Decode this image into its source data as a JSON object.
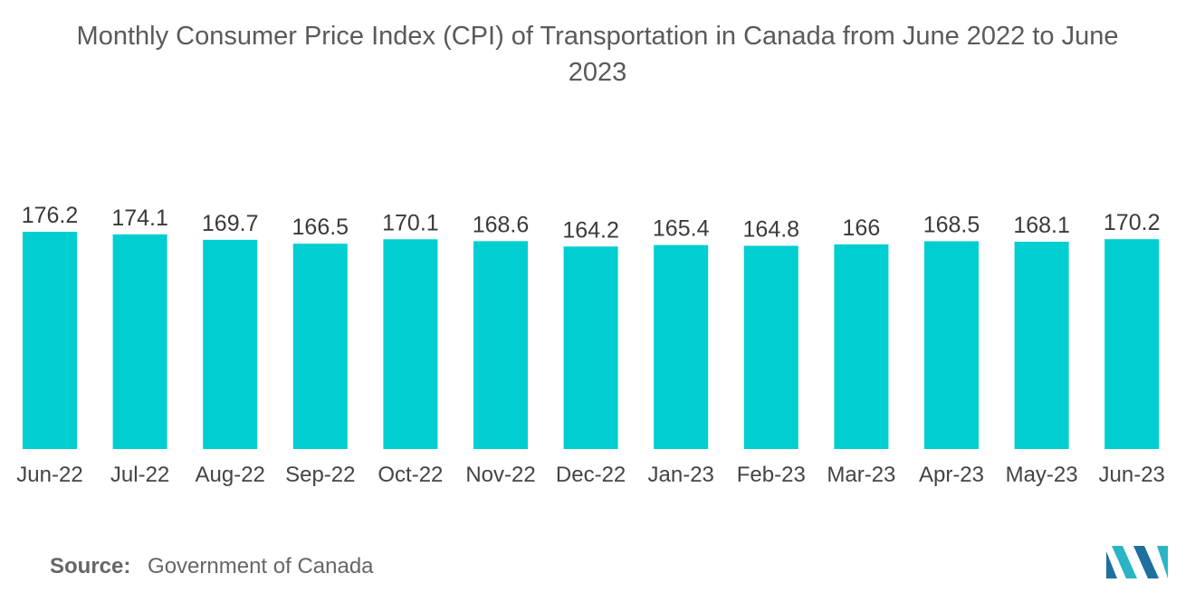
{
  "chart_data": {
    "type": "bar",
    "title_lines": [
      "Monthly Consumer Price Index (CPI) of Transportation in Canada from June 2022 to June",
      "2023"
    ],
    "categories": [
      "Jun-22",
      "Jul-22",
      "Aug-22",
      "Sep-22",
      "Oct-22",
      "Nov-22",
      "Dec-22",
      "Jan-23",
      "Feb-23",
      "Mar-23",
      "Apr-23",
      "May-23",
      "Jun-23"
    ],
    "values": [
      176.2,
      174.1,
      169.7,
      166.5,
      170.1,
      168.6,
      164.2,
      165.4,
      164.8,
      166,
      168.5,
      168.1,
      170.2
    ],
    "value_labels": [
      "176.2",
      "174.1",
      "169.7",
      "166.5",
      "170.1",
      "168.6",
      "164.2",
      "165.4",
      "164.8",
      "166",
      "168.5",
      "168.1",
      "170.2"
    ],
    "xlabel": "",
    "ylabel": "",
    "ylim": [
      0,
      176.2
    ],
    "grid": false,
    "legend": "none",
    "bar_color": "#00ced1"
  },
  "source": {
    "label": "Source:",
    "value": "Government of Canada"
  },
  "colors": {
    "logo_dark": "#1f6f9f",
    "logo_light": "#2ab5c4"
  }
}
